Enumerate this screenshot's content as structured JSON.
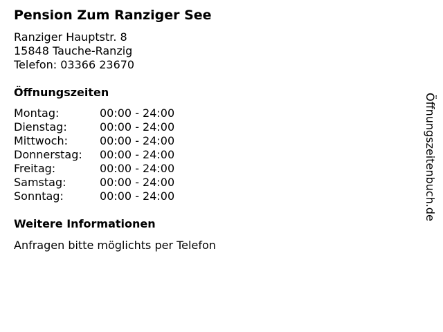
{
  "title": "Pension Zum Ranziger See",
  "address": {
    "street": "Ranziger Hauptstr. 8",
    "city": "15848 Tauche-Ranzig",
    "phone": "Telefon: 03366 23670"
  },
  "hours_heading": "Öffnungszeiten",
  "hours": [
    {
      "day": "Montag:",
      "time": "00:00 - 24:00"
    },
    {
      "day": "Dienstag:",
      "time": "00:00 - 24:00"
    },
    {
      "day": "Mittwoch:",
      "time": "00:00 - 24:00"
    },
    {
      "day": "Donnerstag:",
      "time": "00:00 - 24:00"
    },
    {
      "day": "Freitag:",
      "time": "00:00 - 24:00"
    },
    {
      "day": "Samstag:",
      "time": "00:00 - 24:00"
    },
    {
      "day": "Sonntag:",
      "time": "00:00 - 24:00"
    }
  ],
  "info_heading": "Weitere Informationen",
  "info_text": "Anfragen bitte möglichts per Telefon",
  "watermark": "Öffnungszeitenbuch.de"
}
